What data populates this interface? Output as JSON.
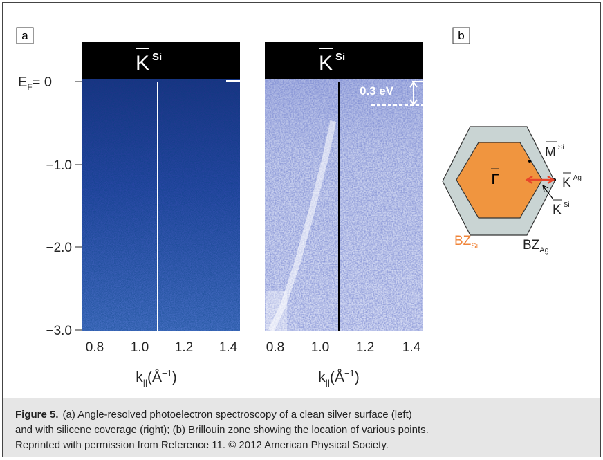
{
  "panel_a": {
    "label": "a",
    "header": {
      "symbol": "K",
      "sup": "Si"
    },
    "y_axis": {
      "ef": {
        "main": "E",
        "sub": "F",
        "rest": "= 0"
      },
      "ticks": [
        "−1.0",
        "−2.0",
        "−3.0"
      ]
    },
    "x_axis": {
      "ticks": [
        "0.8",
        "1.0",
        "1.2",
        "1.4"
      ],
      "label": {
        "k": "k",
        "sub": "||",
        "open": "(Å",
        "sup": "−1",
        "close": ")"
      }
    }
  },
  "panel_right": {
    "header": {
      "symbol": "K",
      "sup": "Si"
    },
    "annotation": "0.3 eV",
    "x_axis": {
      "ticks": [
        "0.8",
        "1.0",
        "1.2",
        "1.4"
      ],
      "label": {
        "k": "k",
        "sub": "||",
        "open": "(Å",
        "sup": "−1",
        "close": ")"
      }
    }
  },
  "panel_b": {
    "label": "b",
    "gamma": "Γ",
    "m_si": {
      "symbol": "M",
      "sup": "Si"
    },
    "k_ag": {
      "symbol": "K",
      "sup": "Ag"
    },
    "k_si": {
      "symbol": "K",
      "sup": "Si"
    },
    "bz_si": {
      "main": "BZ",
      "sub": "Si"
    },
    "bz_ag": {
      "main": "BZ",
      "sub": "Ag"
    }
  },
  "caption": {
    "figure": "Figure 5.",
    "lines": [
      "(a) Angle-resolved photoelectron spectroscopy of a clean silver surface (left)",
      "and with silicene coverage (right); (b) Brillouin zone showing the location of various points.",
      "Reprinted with permission from Reference 11. © 2012 American Physical Society."
    ]
  }
}
